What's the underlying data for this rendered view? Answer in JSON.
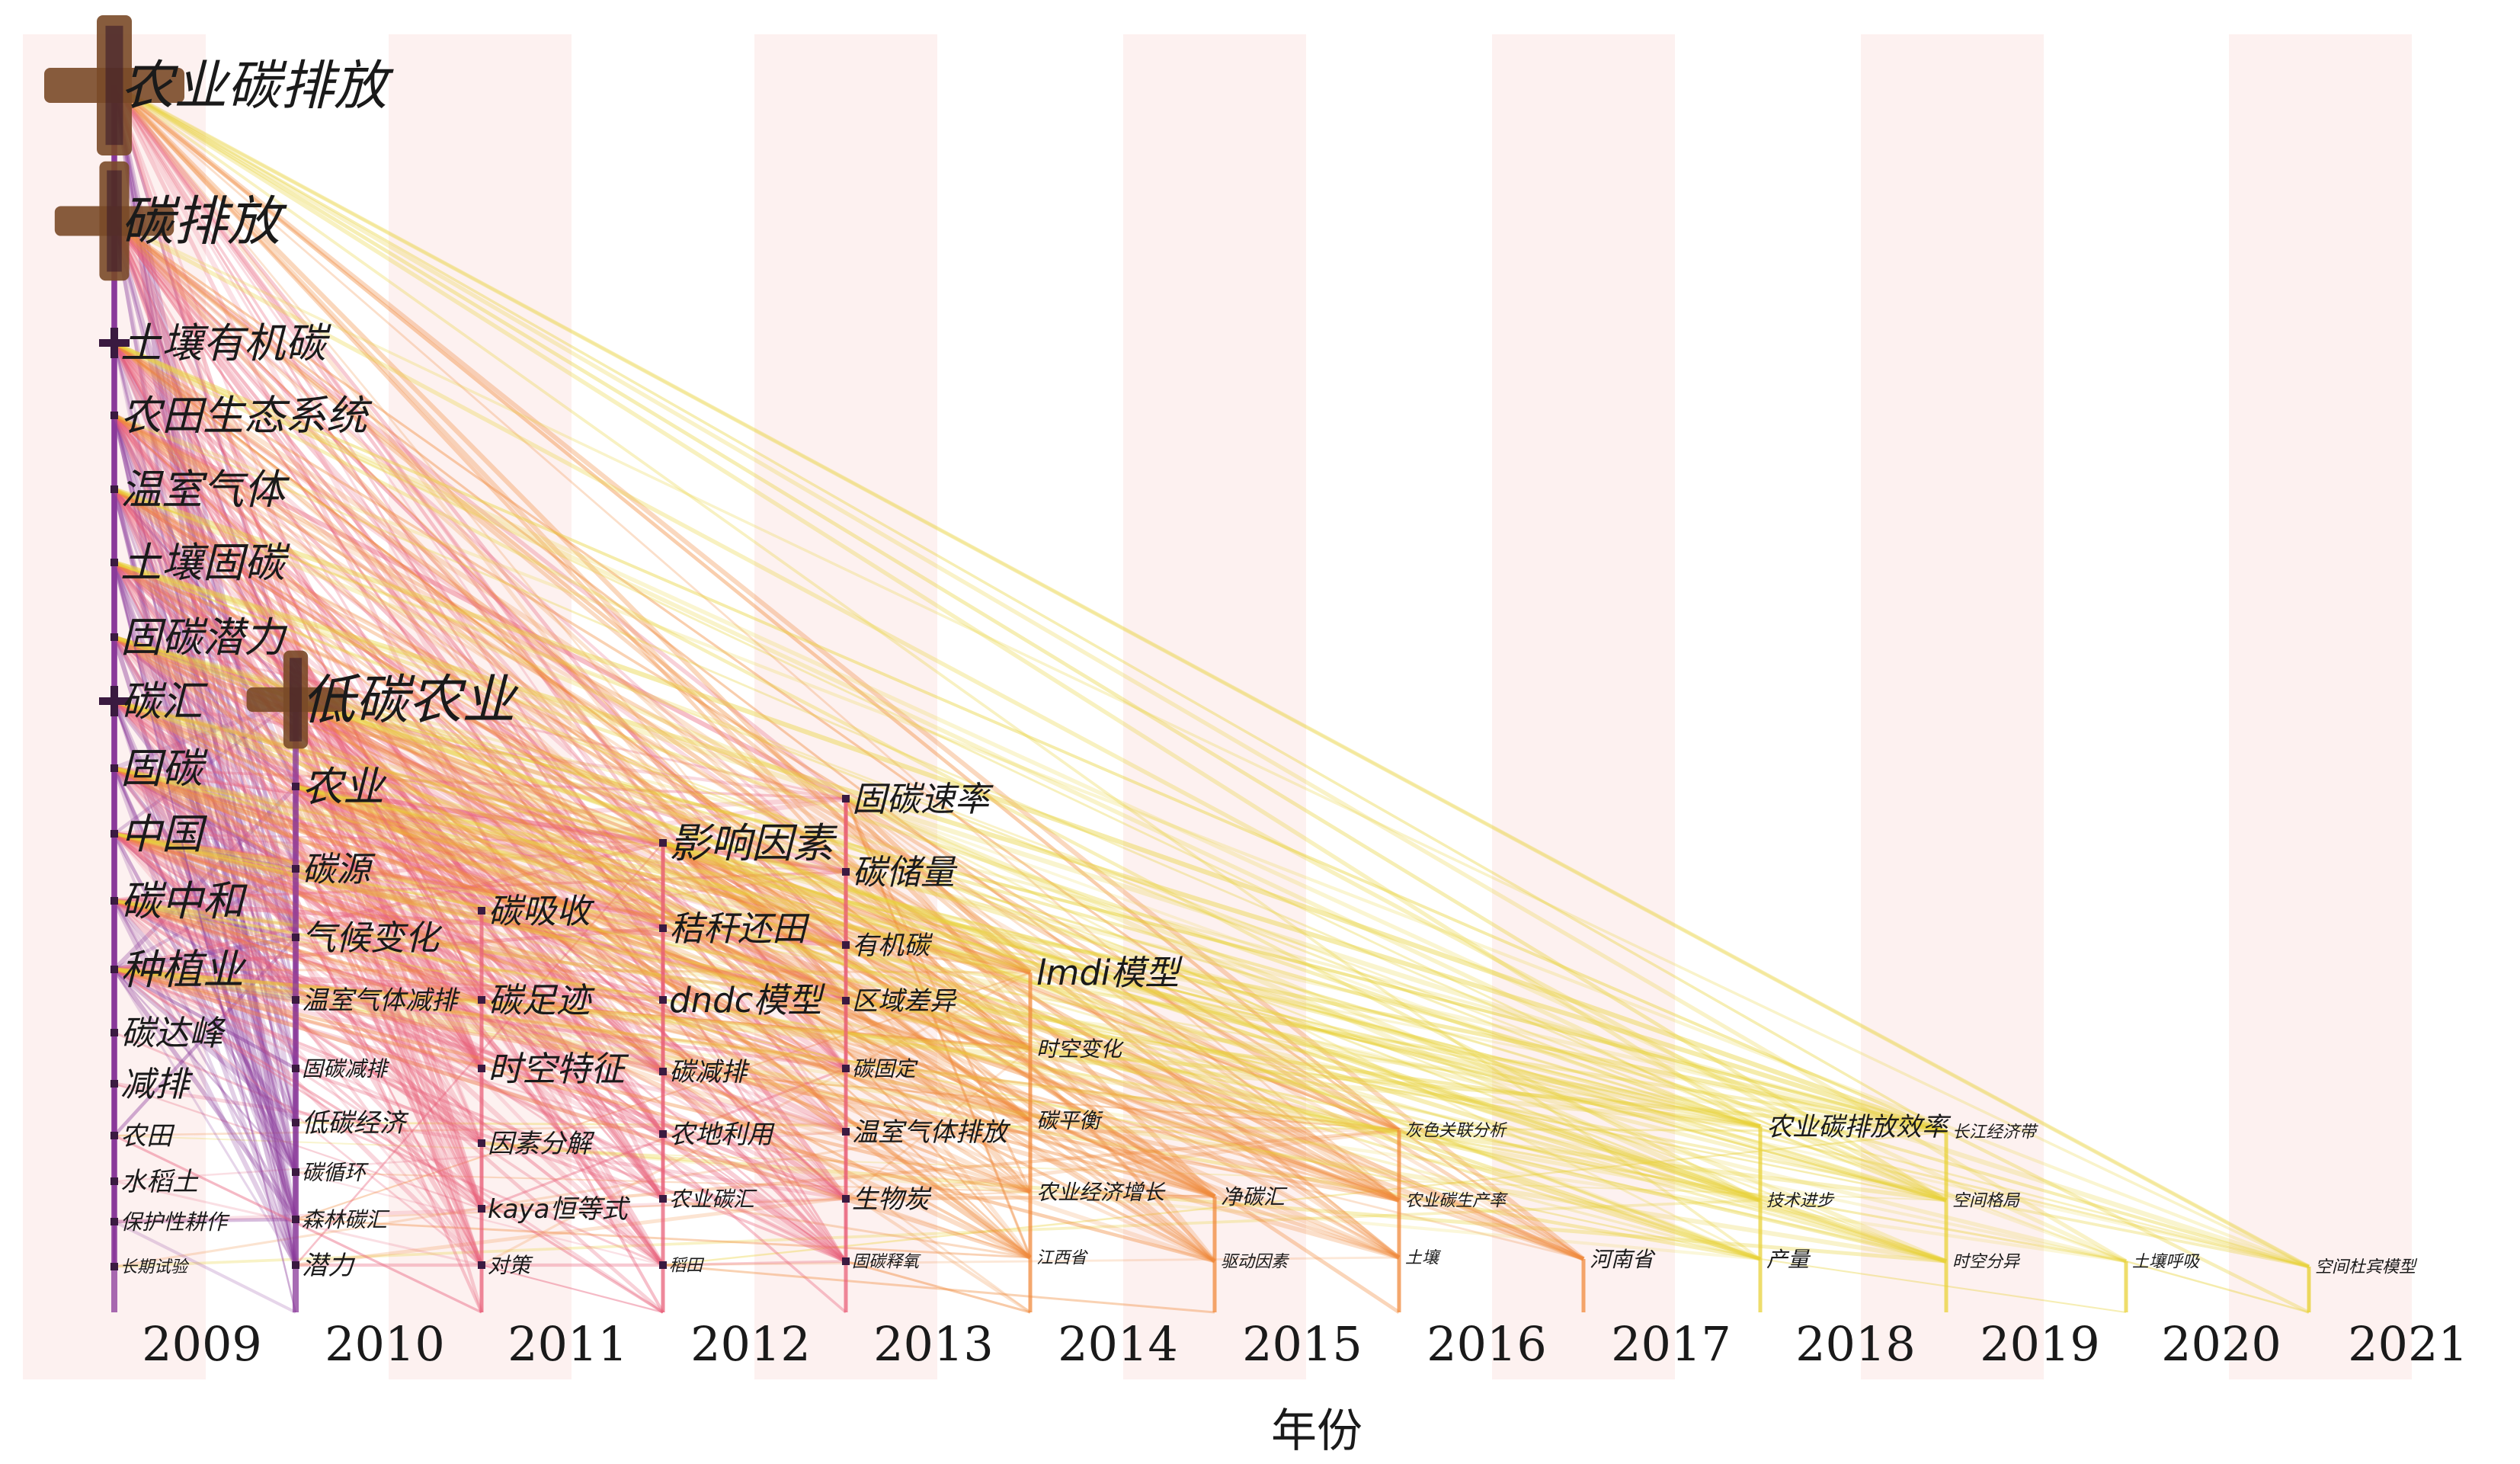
{
  "figure": {
    "x_axis_label": "年份",
    "years": [
      "2009",
      "2010",
      "2011",
      "2012",
      "2013",
      "2014",
      "2015",
      "2016",
      "2017",
      "2018",
      "2019",
      "2020",
      "2021"
    ]
  },
  "colors": {
    "band": "#fdf1f0",
    "early_link": "#8a3a9a",
    "mid_link": "#e8607a",
    "late_link": "#f08a3c",
    "recent_link": "#e8d23a",
    "node_big": "#7a4a28",
    "node_small": "#3a1a40",
    "text": "#1a1a1a"
  },
  "keywords": [
    {
      "label": "农业碳排放",
      "year": "2009",
      "size": "xl",
      "marker": "big"
    },
    {
      "label": "碳排放",
      "year": "2009",
      "size": "xl",
      "marker": "big"
    },
    {
      "label": "土壤有机碳",
      "year": "2009",
      "size": "l",
      "marker": "cross"
    },
    {
      "label": "农田生态系统",
      "year": "2009",
      "size": "l",
      "marker": "dot"
    },
    {
      "label": "温室气体",
      "year": "2009",
      "size": "l",
      "marker": "dot"
    },
    {
      "label": "土壤固碳",
      "year": "2009",
      "size": "l",
      "marker": "dot"
    },
    {
      "label": "固碳潜力",
      "year": "2009",
      "size": "l",
      "marker": "dot"
    },
    {
      "label": "碳汇",
      "year": "2009",
      "size": "l",
      "marker": "cross"
    },
    {
      "label": "固碳",
      "year": "2009",
      "size": "l",
      "marker": "dot"
    },
    {
      "label": "中国",
      "year": "2009",
      "size": "l",
      "marker": "dot"
    },
    {
      "label": "碳中和",
      "year": "2009",
      "size": "l",
      "marker": "dot"
    },
    {
      "label": "种植业",
      "year": "2009",
      "size": "l",
      "marker": "dot"
    },
    {
      "label": "碳达峰",
      "year": "2009",
      "size": "m",
      "marker": "dot"
    },
    {
      "label": "减排",
      "year": "2009",
      "size": "m",
      "marker": "dot"
    },
    {
      "label": "农田",
      "year": "2009",
      "size": "s",
      "marker": "dot"
    },
    {
      "label": "水稻土",
      "year": "2009",
      "size": "s",
      "marker": "dot"
    },
    {
      "label": "保护性耕作",
      "year": "2009",
      "size": "xs",
      "marker": "dot"
    },
    {
      "label": "长期试验",
      "year": "2009",
      "size": "xxs",
      "marker": "dot"
    },
    {
      "label": "低碳农业",
      "year": "2010",
      "size": "xl",
      "marker": "big"
    },
    {
      "label": "农业",
      "year": "2010",
      "size": "l",
      "marker": "dot"
    },
    {
      "label": "碳源",
      "year": "2010",
      "size": "m",
      "marker": "dot"
    },
    {
      "label": "气候变化",
      "year": "2010",
      "size": "m",
      "marker": "dot"
    },
    {
      "label": "温室气体减排",
      "year": "2010",
      "size": "s",
      "marker": "dot"
    },
    {
      "label": "固碳减排",
      "year": "2010",
      "size": "xs",
      "marker": "dot"
    },
    {
      "label": "低碳经济",
      "year": "2010",
      "size": "s",
      "marker": "dot"
    },
    {
      "label": "碳循环",
      "year": "2010",
      "size": "xs",
      "marker": "dot"
    },
    {
      "label": "森林碳汇",
      "year": "2010",
      "size": "xs",
      "marker": "dot"
    },
    {
      "label": "潜力",
      "year": "2010",
      "size": "s",
      "marker": "dot"
    },
    {
      "label": "碳吸收",
      "year": "2011",
      "size": "m",
      "marker": "dot"
    },
    {
      "label": "碳足迹",
      "year": "2011",
      "size": "m",
      "marker": "dot"
    },
    {
      "label": "时空特征",
      "year": "2011",
      "size": "m",
      "marker": "dot"
    },
    {
      "label": "因素分解",
      "year": "2011",
      "size": "s",
      "marker": "dot"
    },
    {
      "label": "kaya恒等式",
      "year": "2011",
      "size": "s",
      "marker": "dot"
    },
    {
      "label": "对策",
      "year": "2011",
      "size": "xs",
      "marker": "dot"
    },
    {
      "label": "影响因素",
      "year": "2012",
      "size": "l",
      "marker": "dot"
    },
    {
      "label": "秸秆还田",
      "year": "2012",
      "size": "m",
      "marker": "dot"
    },
    {
      "label": "dndc模型",
      "year": "2012",
      "size": "m",
      "marker": "dot"
    },
    {
      "label": "碳减排",
      "year": "2012",
      "size": "s",
      "marker": "dot"
    },
    {
      "label": "农地利用",
      "year": "2012",
      "size": "s",
      "marker": "dot"
    },
    {
      "label": "农业碳汇",
      "year": "2012",
      "size": "xs",
      "marker": "dot"
    },
    {
      "label": "稻田",
      "year": "2012",
      "size": "xxs",
      "marker": "dot"
    },
    {
      "label": "固碳速率",
      "year": "2013",
      "size": "m",
      "marker": "dot"
    },
    {
      "label": "碳储量",
      "year": "2013",
      "size": "m",
      "marker": "dot"
    },
    {
      "label": "有机碳",
      "year": "2013",
      "size": "s",
      "marker": "dot"
    },
    {
      "label": "区域差异",
      "year": "2013",
      "size": "s",
      "marker": "dot"
    },
    {
      "label": "碳固定",
      "year": "2013",
      "size": "xs",
      "marker": "dot"
    },
    {
      "label": "温室气体排放",
      "year": "2013",
      "size": "s",
      "marker": "dot"
    },
    {
      "label": "生物炭",
      "year": "2013",
      "size": "s",
      "marker": "dot"
    },
    {
      "label": "固碳释氧",
      "year": "2013",
      "size": "xxs",
      "marker": "dot"
    },
    {
      "label": "lmdi模型",
      "year": "2014",
      "size": "m",
      "marker": "none"
    },
    {
      "label": "时空变化",
      "year": "2014",
      "size": "xs",
      "marker": "none"
    },
    {
      "label": "碳平衡",
      "year": "2014",
      "size": "xs",
      "marker": "none"
    },
    {
      "label": "农业经济增长",
      "year": "2014",
      "size": "xs",
      "marker": "none"
    },
    {
      "label": "江西省",
      "year": "2014",
      "size": "xxs",
      "marker": "none"
    },
    {
      "label": "净碳汇",
      "year": "2015",
      "size": "xs",
      "marker": "none"
    },
    {
      "label": "驱动因素",
      "year": "2015",
      "size": "xxs",
      "marker": "none"
    },
    {
      "label": "灰色关联分析",
      "year": "2016",
      "size": "xxs",
      "marker": "none"
    },
    {
      "label": "农业碳生产率",
      "year": "2016",
      "size": "xxs",
      "marker": "none"
    },
    {
      "label": "土壤",
      "year": "2016",
      "size": "xxs",
      "marker": "none"
    },
    {
      "label": "河南省",
      "year": "2017",
      "size": "xs",
      "marker": "none"
    },
    {
      "label": "农业碳排放效率",
      "year": "2018",
      "size": "s",
      "marker": "none"
    },
    {
      "label": "技术进步",
      "year": "2018",
      "size": "xxs",
      "marker": "none"
    },
    {
      "label": "产量",
      "year": "2018",
      "size": "xs",
      "marker": "none"
    },
    {
      "label": "长江经济带",
      "year": "2019",
      "size": "xxs",
      "marker": "none"
    },
    {
      "label": "空间格局",
      "year": "2019",
      "size": "xxs",
      "marker": "none"
    },
    {
      "label": "时空分异",
      "year": "2019",
      "size": "xxs",
      "marker": "none"
    },
    {
      "label": "土壤呼吸",
      "year": "2020",
      "size": "xxs",
      "marker": "none"
    },
    {
      "label": "空间杜宾模型",
      "year": "2021",
      "size": "xxs",
      "marker": "none"
    }
  ]
}
